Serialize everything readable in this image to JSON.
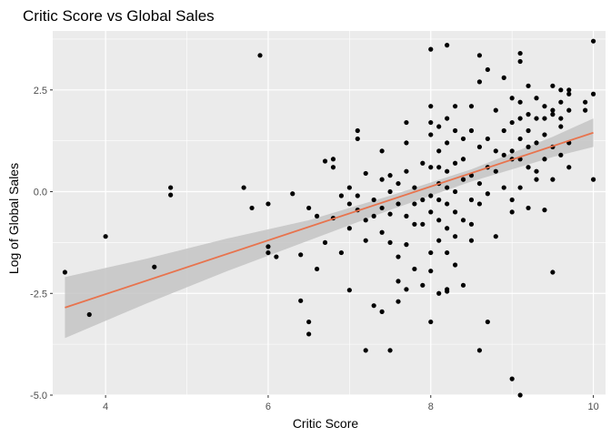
{
  "chart_data": {
    "type": "scatter",
    "title": "Critic Score vs Global Sales",
    "xlabel": "Critic Score",
    "ylabel": "Log of Global Sales",
    "xlim": [
      3.35,
      10.15
    ],
    "ylim": [
      -5.0,
      3.95
    ],
    "x_ticks": [
      4,
      6,
      8,
      10
    ],
    "x_tick_labels": [
      "4",
      "6",
      "8",
      "10"
    ],
    "y_ticks": [
      2.5,
      0.0,
      -2.5,
      -5.0
    ],
    "y_tick_labels": [
      "2.5",
      "0.0",
      "-2.5",
      "-5.0"
    ],
    "grid": true,
    "legend": "none",
    "colors": {
      "panel": "#ebebeb",
      "grid": "#ffffff",
      "points": "#000000",
      "fit_line": "#e8734d",
      "ribbon": "#c4c4c4"
    },
    "fit_line": {
      "x": [
        3.5,
        10.0
      ],
      "y": [
        -2.85,
        1.45
      ]
    },
    "confidence_band": {
      "x": [
        3.5,
        4.5,
        5.5,
        6.5,
        7.5,
        8.5,
        9.0,
        9.5,
        10.0
      ],
      "lower": [
        -3.6,
        -2.75,
        -1.95,
        -1.2,
        -0.45,
        0.25,
        0.55,
        0.85,
        1.1
      ],
      "upper": [
        -2.1,
        -1.65,
        -1.15,
        -0.7,
        -0.1,
        0.55,
        0.95,
        1.35,
        1.8
      ]
    },
    "points": [
      {
        "x": 3.5,
        "y": -1.98
      },
      {
        "x": 3.8,
        "y": -3.02
      },
      {
        "x": 4.0,
        "y": -1.1
      },
      {
        "x": 4.6,
        "y": -1.85
      },
      {
        "x": 4.8,
        "y": 0.1
      },
      {
        "x": 4.8,
        "y": -0.08
      },
      {
        "x": 5.7,
        "y": 0.1
      },
      {
        "x": 5.8,
        "y": -0.4
      },
      {
        "x": 5.9,
        "y": 3.35
      },
      {
        "x": 6.0,
        "y": -0.3
      },
      {
        "x": 6.0,
        "y": -1.35
      },
      {
        "x": 6.0,
        "y": -1.5
      },
      {
        "x": 6.1,
        "y": -1.6
      },
      {
        "x": 6.3,
        "y": -0.05
      },
      {
        "x": 6.4,
        "y": -1.55
      },
      {
        "x": 6.4,
        "y": -2.68
      },
      {
        "x": 6.5,
        "y": -0.4
      },
      {
        "x": 6.5,
        "y": -3.2
      },
      {
        "x": 6.5,
        "y": -3.5
      },
      {
        "x": 6.6,
        "y": -0.6
      },
      {
        "x": 6.6,
        "y": -1.9
      },
      {
        "x": 6.7,
        "y": 0.75
      },
      {
        "x": 6.7,
        "y": -1.25
      },
      {
        "x": 6.8,
        "y": 0.6
      },
      {
        "x": 6.8,
        "y": 0.8
      },
      {
        "x": 6.8,
        "y": -0.65
      },
      {
        "x": 6.9,
        "y": -1.5
      },
      {
        "x": 6.9,
        "y": -0.1
      },
      {
        "x": 7.0,
        "y": -2.42
      },
      {
        "x": 7.0,
        "y": 0.1
      },
      {
        "x": 7.0,
        "y": -0.3
      },
      {
        "x": 7.0,
        "y": -0.9
      },
      {
        "x": 7.1,
        "y": 1.3
      },
      {
        "x": 7.1,
        "y": 1.5
      },
      {
        "x": 7.1,
        "y": -0.1
      },
      {
        "x": 7.1,
        "y": -0.45
      },
      {
        "x": 7.2,
        "y": 0.45
      },
      {
        "x": 7.2,
        "y": -0.7
      },
      {
        "x": 7.2,
        "y": -3.9
      },
      {
        "x": 7.2,
        "y": -1.2
      },
      {
        "x": 7.3,
        "y": -0.2
      },
      {
        "x": 7.3,
        "y": -2.8
      },
      {
        "x": 7.3,
        "y": -0.6
      },
      {
        "x": 7.4,
        "y": 1.0
      },
      {
        "x": 7.4,
        "y": 0.3
      },
      {
        "x": 7.4,
        "y": -0.4
      },
      {
        "x": 7.4,
        "y": -1.0
      },
      {
        "x": 7.4,
        "y": -2.95
      },
      {
        "x": 7.5,
        "y": 0.4
      },
      {
        "x": 7.5,
        "y": -0.55
      },
      {
        "x": 7.5,
        "y": -1.25
      },
      {
        "x": 7.5,
        "y": -3.9
      },
      {
        "x": 7.5,
        "y": 0.0
      },
      {
        "x": 7.6,
        "y": 0.2
      },
      {
        "x": 7.6,
        "y": -0.3
      },
      {
        "x": 7.6,
        "y": -1.6
      },
      {
        "x": 7.6,
        "y": -2.2
      },
      {
        "x": 7.6,
        "y": -2.7
      },
      {
        "x": 7.7,
        "y": 1.7
      },
      {
        "x": 7.7,
        "y": 1.2
      },
      {
        "x": 7.7,
        "y": 0.5
      },
      {
        "x": 7.7,
        "y": -0.6
      },
      {
        "x": 7.7,
        "y": -1.3
      },
      {
        "x": 7.7,
        "y": -2.4
      },
      {
        "x": 7.8,
        "y": 0.1
      },
      {
        "x": 7.8,
        "y": -0.3
      },
      {
        "x": 7.8,
        "y": -0.8
      },
      {
        "x": 7.8,
        "y": -1.9
      },
      {
        "x": 7.9,
        "y": 0.7
      },
      {
        "x": 7.9,
        "y": -0.2
      },
      {
        "x": 7.9,
        "y": -0.8
      },
      {
        "x": 7.9,
        "y": -2.3
      },
      {
        "x": 8.0,
        "y": 3.5
      },
      {
        "x": 8.0,
        "y": 2.1
      },
      {
        "x": 8.0,
        "y": 1.7
      },
      {
        "x": 8.0,
        "y": 1.4
      },
      {
        "x": 8.0,
        "y": 0.6
      },
      {
        "x": 8.0,
        "y": -0.1
      },
      {
        "x": 8.0,
        "y": -0.5
      },
      {
        "x": 8.0,
        "y": -1.5
      },
      {
        "x": 8.0,
        "y": -1.95
      },
      {
        "x": 8.0,
        "y": -3.2
      },
      {
        "x": 8.1,
        "y": 1.6
      },
      {
        "x": 8.1,
        "y": 1.0
      },
      {
        "x": 8.1,
        "y": 0.6
      },
      {
        "x": 8.1,
        "y": 0.2
      },
      {
        "x": 8.1,
        "y": -0.2
      },
      {
        "x": 8.1,
        "y": -0.7
      },
      {
        "x": 8.1,
        "y": -1.2
      },
      {
        "x": 8.1,
        "y": -2.5
      },
      {
        "x": 8.2,
        "y": 3.6
      },
      {
        "x": 8.2,
        "y": 1.8
      },
      {
        "x": 8.2,
        "y": 1.2
      },
      {
        "x": 8.2,
        "y": 0.5
      },
      {
        "x": 8.2,
        "y": 0.1
      },
      {
        "x": 8.2,
        "y": -0.3
      },
      {
        "x": 8.2,
        "y": -0.9
      },
      {
        "x": 8.2,
        "y": -1.5
      },
      {
        "x": 8.2,
        "y": -2.4
      },
      {
        "x": 8.2,
        "y": -2.45
      },
      {
        "x": 8.3,
        "y": 2.1
      },
      {
        "x": 8.3,
        "y": 1.5
      },
      {
        "x": 8.3,
        "y": 0.7
      },
      {
        "x": 8.3,
        "y": 0.0
      },
      {
        "x": 8.3,
        "y": -0.5
      },
      {
        "x": 8.3,
        "y": -1.1
      },
      {
        "x": 8.3,
        "y": -1.8
      },
      {
        "x": 8.4,
        "y": 1.3
      },
      {
        "x": 8.4,
        "y": 0.8
      },
      {
        "x": 8.4,
        "y": 0.3
      },
      {
        "x": 8.4,
        "y": -0.7
      },
      {
        "x": 8.4,
        "y": -2.3
      },
      {
        "x": 8.5,
        "y": 2.1
      },
      {
        "x": 8.5,
        "y": 1.5
      },
      {
        "x": 8.5,
        "y": 0.4
      },
      {
        "x": 8.5,
        "y": -0.2
      },
      {
        "x": 8.5,
        "y": -0.8
      },
      {
        "x": 8.5,
        "y": -1.2
      },
      {
        "x": 8.6,
        "y": 3.35
      },
      {
        "x": 8.6,
        "y": 2.7
      },
      {
        "x": 8.6,
        "y": 1.1
      },
      {
        "x": 8.6,
        "y": 0.2
      },
      {
        "x": 8.6,
        "y": -0.3
      },
      {
        "x": 8.6,
        "y": -3.9
      },
      {
        "x": 8.7,
        "y": 3.0
      },
      {
        "x": 8.7,
        "y": 1.3
      },
      {
        "x": 8.7,
        "y": 0.6
      },
      {
        "x": 8.7,
        "y": -0.05
      },
      {
        "x": 8.7,
        "y": -3.2
      },
      {
        "x": 8.8,
        "y": 2.0
      },
      {
        "x": 8.8,
        "y": 1.0
      },
      {
        "x": 8.8,
        "y": 0.5
      },
      {
        "x": 8.8,
        "y": -1.1
      },
      {
        "x": 8.9,
        "y": 2.8
      },
      {
        "x": 8.9,
        "y": 1.5
      },
      {
        "x": 8.9,
        "y": 0.9
      },
      {
        "x": 8.9,
        "y": 0.1
      },
      {
        "x": 9.0,
        "y": 2.3
      },
      {
        "x": 9.0,
        "y": 1.7
      },
      {
        "x": 9.0,
        "y": 1.0
      },
      {
        "x": 9.0,
        "y": 0.8
      },
      {
        "x": 9.0,
        "y": -0.2
      },
      {
        "x": 9.0,
        "y": -0.5
      },
      {
        "x": 9.0,
        "y": -4.6
      },
      {
        "x": 9.1,
        "y": 3.4
      },
      {
        "x": 9.1,
        "y": 3.2
      },
      {
        "x": 9.1,
        "y": 2.2
      },
      {
        "x": 9.1,
        "y": 1.8
      },
      {
        "x": 9.1,
        "y": 1.3
      },
      {
        "x": 9.1,
        "y": 0.8
      },
      {
        "x": 9.1,
        "y": 0.1
      },
      {
        "x": 9.1,
        "y": -5.0
      },
      {
        "x": 9.2,
        "y": 2.6
      },
      {
        "x": 9.2,
        "y": 1.9
      },
      {
        "x": 9.2,
        "y": 1.5
      },
      {
        "x": 9.2,
        "y": 1.1
      },
      {
        "x": 9.2,
        "y": 0.6
      },
      {
        "x": 9.2,
        "y": -0.4
      },
      {
        "x": 9.3,
        "y": 2.3
      },
      {
        "x": 9.3,
        "y": 1.8
      },
      {
        "x": 9.3,
        "y": 1.2
      },
      {
        "x": 9.3,
        "y": 0.5
      },
      {
        "x": 9.3,
        "y": 0.3
      },
      {
        "x": 9.4,
        "y": 2.1
      },
      {
        "x": 9.4,
        "y": 1.8
      },
      {
        "x": 9.4,
        "y": 1.4
      },
      {
        "x": 9.4,
        "y": 0.8
      },
      {
        "x": 9.4,
        "y": -0.45
      },
      {
        "x": 9.5,
        "y": 2.6
      },
      {
        "x": 9.5,
        "y": 2.0
      },
      {
        "x": 9.5,
        "y": 1.9
      },
      {
        "x": 9.5,
        "y": 1.1
      },
      {
        "x": 9.5,
        "y": 0.3
      },
      {
        "x": 9.5,
        "y": -1.98
      },
      {
        "x": 9.6,
        "y": 2.5
      },
      {
        "x": 9.6,
        "y": 2.2
      },
      {
        "x": 9.6,
        "y": 1.8
      },
      {
        "x": 9.6,
        "y": 1.6
      },
      {
        "x": 9.6,
        "y": 0.9
      },
      {
        "x": 9.7,
        "y": 2.5
      },
      {
        "x": 9.7,
        "y": 2.0
      },
      {
        "x": 9.7,
        "y": 1.2
      },
      {
        "x": 9.7,
        "y": 0.6
      },
      {
        "x": 9.7,
        "y": 2.4
      },
      {
        "x": 9.9,
        "y": 2.2
      },
      {
        "x": 9.9,
        "y": 2.0
      },
      {
        "x": 10.0,
        "y": 3.7
      },
      {
        "x": 10.0,
        "y": 2.4
      },
      {
        "x": 10.0,
        "y": 0.3
      }
    ]
  }
}
